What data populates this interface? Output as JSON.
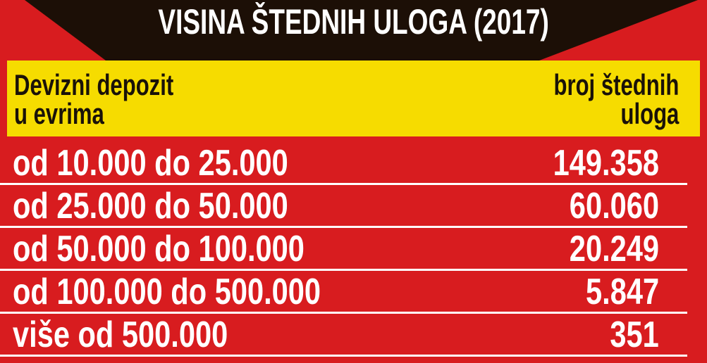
{
  "title": "VISINA ŠTEDNIH ULOGA (2017)",
  "header": {
    "left_line1": "Devizni depozit",
    "left_line2": "u evrima",
    "right_line1": "broj štednih",
    "right_line2": "uloga"
  },
  "rows": [
    {
      "range": "od 10.000 do 25.000",
      "count": "149.358"
    },
    {
      "range": "od 25.000 do 50.000",
      "count": "60.060"
    },
    {
      "range": "od 50.000 do 100.000",
      "count": "20.249"
    },
    {
      "range": "od 100.000 do 500.000",
      "count": "5.847"
    },
    {
      "range": "više od 500.000",
      "count": "351"
    }
  ],
  "colors": {
    "background": "#d81c1f",
    "banner": "#1c0f06",
    "header": "#f6dc00",
    "text": "#ffffff"
  }
}
